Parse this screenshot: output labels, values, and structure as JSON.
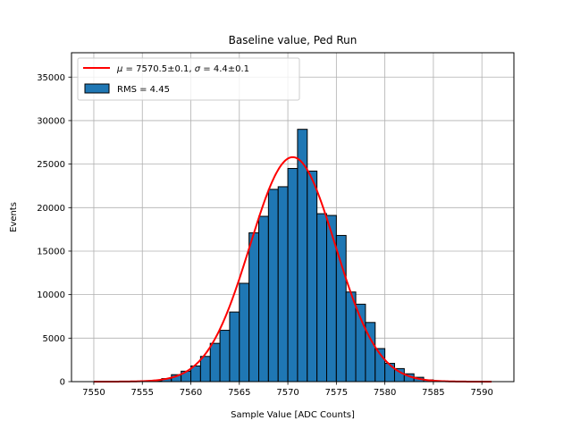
{
  "chart_data": {
    "type": "bar",
    "title": "Baseline value, Ped Run",
    "xlabel": "Sample Value [ADC Counts]",
    "ylabel": "Events",
    "xlim": [
      7547.7,
      7593.3
    ],
    "ylim": [
      0,
      37800
    ],
    "xticks": [
      7550,
      7555,
      7560,
      7565,
      7570,
      7575,
      7580,
      7585,
      7590
    ],
    "yticks": [
      0,
      5000,
      10000,
      15000,
      20000,
      25000,
      30000,
      35000
    ],
    "grid": true,
    "legend_position": "top-left",
    "histogram": {
      "name": "RMS = 4.45",
      "color": "#1f77b4",
      "edgecolor": "#000000",
      "bin_width": 1,
      "bin_start": [
        7550,
        7551,
        7552,
        7553,
        7554,
        7555,
        7556,
        7557,
        7558,
        7559,
        7560,
        7561,
        7562,
        7563,
        7564,
        7565,
        7566,
        7567,
        7568,
        7569,
        7570,
        7571,
        7572,
        7573,
        7574,
        7575,
        7576,
        7577,
        7578,
        7579,
        7580,
        7581,
        7582,
        7583,
        7584,
        7585,
        7586,
        7587,
        7588,
        7589,
        7590
      ],
      "counts": [
        0,
        0,
        0,
        0,
        0,
        50,
        100,
        350,
        800,
        1200,
        1800,
        2900,
        4400,
        5900,
        8000,
        11300,
        17100,
        19000,
        22100,
        22400,
        24500,
        29000,
        24200,
        19300,
        19100,
        16800,
        10300,
        8900,
        6800,
        3800,
        2100,
        1500,
        900,
        500,
        200,
        50,
        0,
        0,
        0,
        0,
        0
      ]
    },
    "fit": {
      "name": "μ = 7570.5±0.1, σ = 4.4±0.1",
      "mu_label": "μ",
      "mu_text": " = 7570.5±0.1, ",
      "sigma_label": "σ",
      "sigma_text": " = 4.4±0.1",
      "color": "#ff0000",
      "mu": 7570.5,
      "sigma": 4.4,
      "amplitude": 25800,
      "x_range": [
        7550,
        7591
      ]
    }
  }
}
